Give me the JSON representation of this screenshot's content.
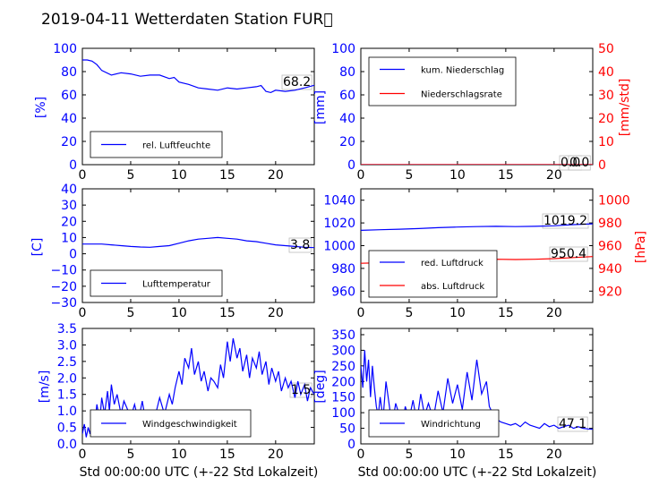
{
  "title": "2019-04-11 Wetterdaten Station FUR\u0000",
  "colors": {
    "left_axis": "#0000ff",
    "right_axis": "#ff0000",
    "wind_light": "#8080ff"
  },
  "chart_data": [
    {
      "id": "humidity",
      "type": "line",
      "ylabel": "[%]",
      "ylim": [
        0,
        100
      ],
      "yticks": [
        "0",
        "20",
        "40",
        "60",
        "80",
        "100"
      ],
      "xlim": [
        0,
        24
      ],
      "xticks": [
        "0",
        "5",
        "10",
        "15",
        "20"
      ],
      "legend": [
        "rel. Luftfeuchte"
      ],
      "legend_position": "lower-left",
      "last_value": "68.2",
      "series": [
        {
          "name": "rel. Luftfeuchte",
          "color": "#0000ff",
          "x": [
            0,
            0.5,
            1,
            1.5,
            2,
            3,
            4,
            5,
            6,
            7,
            8,
            9,
            9.5,
            10,
            11,
            12,
            13,
            14,
            15,
            16,
            17,
            18,
            18.5,
            19,
            19.5,
            20,
            21,
            22,
            23,
            24
          ],
          "y": [
            90,
            90,
            89,
            86,
            81,
            77,
            79,
            78,
            76,
            77,
            77,
            74,
            75,
            71,
            69,
            66,
            65,
            64,
            66,
            65,
            66,
            67,
            68,
            63,
            62,
            64,
            63,
            64,
            66,
            68.2
          ]
        }
      ]
    },
    {
      "id": "precipitation",
      "type": "line",
      "ylabel": "[mm]",
      "ylabel_right": "[mm/std]",
      "ylim": [
        0,
        100
      ],
      "ylim_right": [
        0,
        50
      ],
      "yticks": [
        "0",
        "20",
        "40",
        "60",
        "80",
        "100"
      ],
      "yticks_right": [
        "0",
        "10",
        "20",
        "30",
        "40",
        "50"
      ],
      "xlim": [
        0,
        24
      ],
      "xticks": [
        "0",
        "5",
        "10",
        "15",
        "20"
      ],
      "legend": [
        "kum. Niederschlag",
        "Niederschlagsrate"
      ],
      "legend_position": "upper-left",
      "last_value": "0.0",
      "last_value_right": "0.0",
      "series": [
        {
          "name": "kum. Niederschlag",
          "color": "#0000ff",
          "x": [
            0,
            24
          ],
          "y": [
            0,
            0
          ]
        },
        {
          "name": "Niederschlagsrate",
          "color": "#ff0000",
          "axis": "right",
          "x": [
            0,
            24
          ],
          "y": [
            0,
            0
          ]
        }
      ]
    },
    {
      "id": "temperature",
      "type": "line",
      "ylabel": "[C]",
      "ylim": [
        -30,
        40
      ],
      "yticks": [
        "−30",
        "−20",
        "−10",
        "0",
        "10",
        "20",
        "30",
        "40"
      ],
      "xlim": [
        0,
        24
      ],
      "xticks": [
        "0",
        "5",
        "10",
        "15",
        "20"
      ],
      "legend": [
        "Lufttemperatur"
      ],
      "legend_position": "lower-left",
      "last_value": "3.8",
      "series": [
        {
          "name": "Lufttemperatur",
          "color": "#0000ff",
          "x": [
            0,
            1,
            2,
            3,
            4,
            5,
            6,
            7,
            8,
            9,
            10,
            11,
            12,
            13,
            14,
            15,
            16,
            17,
            18,
            19,
            20,
            21,
            22,
            23,
            24
          ],
          "y": [
            6,
            6,
            6,
            5.5,
            5,
            4.5,
            4.2,
            4,
            4.5,
            5,
            6.5,
            8,
            9,
            9.5,
            10,
            9.5,
            9,
            8,
            7.5,
            6.5,
            5.5,
            5,
            4.5,
            4,
            3.8
          ]
        }
      ]
    },
    {
      "id": "pressure",
      "type": "line",
      "ylabel": "",
      "ylabel_right": "[hPa]",
      "ylim": [
        950,
        1050
      ],
      "ylim_right": [
        910,
        1010
      ],
      "yticks": [
        "960",
        "980",
        "1000",
        "1020",
        "1040"
      ],
      "yticks_right": [
        "920",
        "940",
        "960",
        "980",
        "1000"
      ],
      "xlim": [
        0,
        24
      ],
      "xticks": [
        "0",
        "5",
        "10",
        "15",
        "20"
      ],
      "legend": [
        "red. Luftdruck",
        "abs. Luftdruck"
      ],
      "legend_position": "lower-left",
      "last_value": "1019.2",
      "last_value_right": "950.4",
      "series": [
        {
          "name": "red. Luftdruck",
          "color": "#0000ff",
          "x": [
            0,
            2,
            4,
            6,
            8,
            10,
            12,
            14,
            16,
            18,
            20,
            22,
            24
          ],
          "y": [
            1013.5,
            1014,
            1014.5,
            1015,
            1015.8,
            1016.4,
            1016.8,
            1017,
            1016.8,
            1017,
            1017.5,
            1018.5,
            1019.2
          ]
        },
        {
          "name": "abs. Luftdruck",
          "color": "#ff0000",
          "axis": "right",
          "x": [
            0,
            2,
            4,
            6,
            8,
            10,
            12,
            14,
            16,
            18,
            20,
            22,
            24
          ],
          "y": [
            944.5,
            945,
            945.5,
            946,
            946.8,
            947.4,
            947.8,
            948,
            947.8,
            948,
            948.6,
            949.5,
            950.4
          ]
        }
      ]
    },
    {
      "id": "windspeed",
      "type": "line",
      "ylabel": "[m/s]",
      "ylim": [
        0,
        3.5
      ],
      "yticks": [
        "0.0",
        "0.5",
        "1.0",
        "1.5",
        "2.0",
        "2.5",
        "3.0",
        "3.5"
      ],
      "xlim": [
        0,
        24
      ],
      "xticks": [
        "0",
        "5",
        "10",
        "15",
        "20"
      ],
      "xlabel": "Std 00:00:00 UTC (+-22 Std Lokalzeit)",
      "legend": [
        "Windgeschwindigkeit"
      ],
      "legend_position": "lower-center",
      "last_value": "1.5",
      "series": [
        {
          "name": "Windgeschwindigkeit",
          "color": "#0000ff",
          "x": [
            0,
            0.2,
            0.4,
            0.6,
            0.8,
            1,
            1.2,
            1.5,
            1.8,
            2,
            2.3,
            2.6,
            2.8,
            3,
            3.3,
            3.6,
            4,
            4.3,
            4.6,
            5,
            5.4,
            5.8,
            6.2,
            6.6,
            7,
            7.5,
            8,
            8.5,
            9,
            9.3,
            9.6,
            10,
            10.3,
            10.6,
            11,
            11.3,
            11.6,
            12,
            12.3,
            12.6,
            13,
            13.3,
            13.6,
            14,
            14.3,
            14.6,
            15,
            15.3,
            15.6,
            16,
            16.3,
            16.6,
            17,
            17.3,
            17.6,
            18,
            18.3,
            18.6,
            19,
            19.3,
            19.6,
            20,
            20.3,
            20.6,
            21,
            21.3,
            21.6,
            22,
            22.3,
            22.6,
            23,
            23.3,
            23.6,
            24
          ],
          "y": [
            0.3,
            0.6,
            0.2,
            0.5,
            0.3,
            0.8,
            0.4,
            1.2,
            0.7,
            1.4,
            0.9,
            1.6,
            1.0,
            1.8,
            1.2,
            1.5,
            0.9,
            1.3,
            1.1,
            0.8,
            1.2,
            0.7,
            1.3,
            0.6,
            1.0,
            0.8,
            1.4,
            0.9,
            1.5,
            1.2,
            1.7,
            2.2,
            1.8,
            2.6,
            2.3,
            2.9,
            2.1,
            2.5,
            1.9,
            2.2,
            1.6,
            2.0,
            1.9,
            1.7,
            2.4,
            2.0,
            3.1,
            2.5,
            3.2,
            2.6,
            2.9,
            2.2,
            2.7,
            2.0,
            2.6,
            2.3,
            2.8,
            2.1,
            2.5,
            1.8,
            2.3,
            1.9,
            2.2,
            1.6,
            2.0,
            1.7,
            1.9,
            1.4,
            1.9,
            1.5,
            1.8,
            1.3,
            1.7,
            1.5
          ]
        }
      ]
    },
    {
      "id": "winddirection",
      "type": "line",
      "ylabel": "[deg]",
      "ylim": [
        0,
        370
      ],
      "yticks": [
        "0",
        "50",
        "100",
        "150",
        "200",
        "250",
        "300",
        "350"
      ],
      "xlim": [
        0,
        24
      ],
      "xticks": [
        "0",
        "5",
        "10",
        "15",
        "20"
      ],
      "xlabel": "Std 00:00:00 UTC (+-22 Std Lokalzeit)",
      "legend": [
        "Windrichtung"
      ],
      "legend_position": "lower-center",
      "last_value": "47.1",
      "series": [
        {
          "name": "Windrichtung",
          "color": "#0000ff",
          "x": [
            0,
            0.2,
            0.4,
            0.6,
            0.8,
            1,
            1.2,
            1.4,
            1.6,
            1.8,
            2,
            2.3,
            2.6,
            3,
            3.3,
            3.6,
            4,
            4.3,
            4.6,
            5,
            5.4,
            5.8,
            6.2,
            6.6,
            7,
            7.5,
            8,
            8.5,
            9,
            9.5,
            10,
            10.5,
            11,
            11.5,
            12,
            12.5,
            13,
            13.3,
            13.6,
            14,
            14.5,
            15,
            15.5,
            16,
            16.5,
            17,
            17.5,
            18,
            18.5,
            19,
            19.5,
            20,
            20.5,
            21,
            21.5,
            22,
            22.5,
            23,
            23.5,
            24
          ],
          "y": [
            250,
            180,
            300,
            200,
            270,
            150,
            250,
            180,
            120,
            90,
            150,
            80,
            200,
            110,
            70,
            130,
            90,
            60,
            120,
            80,
            140,
            70,
            160,
            90,
            130,
            80,
            170,
            100,
            210,
            130,
            190,
            110,
            230,
            140,
            270,
            160,
            200,
            120,
            100,
            80,
            70,
            65,
            60,
            65,
            55,
            70,
            60,
            55,
            50,
            65,
            55,
            60,
            50,
            55,
            60,
            50,
            55,
            50,
            48,
            47.1
          ]
        }
      ]
    }
  ]
}
